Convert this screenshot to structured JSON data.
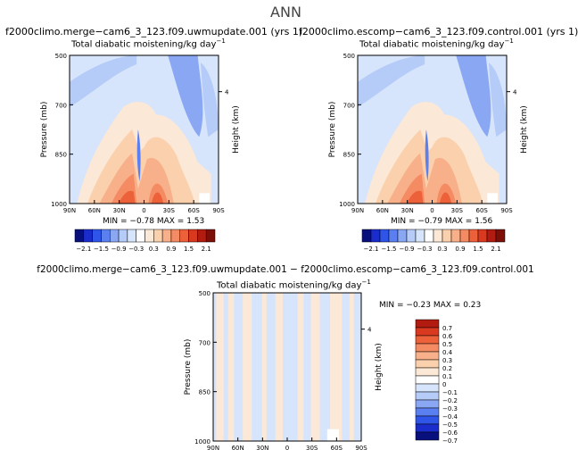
{
  "title": "ANN",
  "colors": {
    "neg": [
      "#08107e",
      "#1a2ccc",
      "#2f55e8",
      "#5a7ff0",
      "#8aa7f4",
      "#b5cbf8",
      "#d6e5fb"
    ],
    "zero": "#ffffff",
    "pos": [
      "#fce8d6",
      "#fbd0ad",
      "#f8b08a",
      "#f48b62",
      "#ec6139",
      "#d8391f",
      "#b21b10",
      "#7d0e08"
    ]
  },
  "chart_data": [
    {
      "type": "heatmap",
      "run_title": "f2000climo.merge−cam6_3_123.f09.uwmupdate.001 (yrs 1)",
      "subtitle": "Total diabatic moistening/kg day",
      "subtitle_sup": "−1",
      "ylabel": "Pressure (mb)",
      "y2label": "Height (km)",
      "x_ticks": [
        "90N",
        "60N",
        "30N",
        "0",
        "30S",
        "60S",
        "90S"
      ],
      "y_ticks": [
        "500",
        "700",
        "850",
        "1000"
      ],
      "y2_ticks": [
        "4"
      ],
      "stats": "MIN =  −0.78   MAX =    1.53",
      "colorbar_labels": [
        "−2.1",
        "−1.5",
        "−0.9",
        "−0.3",
        "0.3",
        "0.9",
        "1.5",
        "2.1"
      ]
    },
    {
      "type": "heatmap",
      "run_title": "f2000climo.escomp−cam6_3_123.f09.control.001 (yrs 1)",
      "subtitle": "Total diabatic moistening/kg day",
      "subtitle_sup": "−1",
      "ylabel": "Pressure (mb)",
      "y2label": "Height (km)",
      "x_ticks": [
        "90N",
        "60N",
        "30N",
        "0",
        "30S",
        "60S",
        "90S"
      ],
      "y_ticks": [
        "500",
        "700",
        "850",
        "1000"
      ],
      "y2_ticks": [
        "4"
      ],
      "stats": "MIN =  −0.79   MAX =    1.56",
      "colorbar_labels": [
        "−2.1",
        "−1.5",
        "−0.9",
        "−0.3",
        "0.3",
        "0.9",
        "1.5",
        "2.1"
      ]
    },
    {
      "type": "heatmap",
      "run_title": "f2000climo.merge−cam6_3_123.f09.uwmupdate.001 − f2000climo.escomp−cam6_3_123.f09.control.001",
      "subtitle": "Total diabatic moistening/kg day",
      "subtitle_sup": "−1",
      "ylabel": "Pressure (mb)",
      "y2label": "Height (km)",
      "x_ticks": [
        "90N",
        "60N",
        "30N",
        "0",
        "30S",
        "60S",
        "90S"
      ],
      "y_ticks": [
        "500",
        "700",
        "850",
        "1000"
      ],
      "y2_ticks": [
        "4"
      ],
      "stats": "MIN =   −0.23   MAX =    0.23",
      "colorbar_labels": [
        "0.7",
        "0.6",
        "0.5",
        "0.4",
        "0.3",
        "0.2",
        "0.1",
        "0",
        "−0.1",
        "−0.2",
        "−0.3",
        "−0.4",
        "−0.5",
        "−0.6",
        "−0.7"
      ]
    }
  ]
}
